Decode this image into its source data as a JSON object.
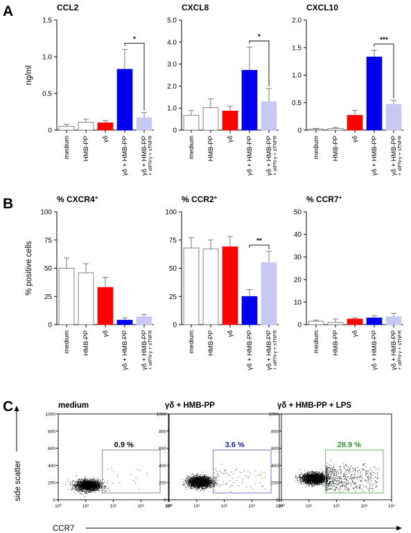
{
  "panel_letters": [
    "A",
    "B",
    "C"
  ],
  "chart_data": [
    {
      "type": "bar",
      "title": "CCL2",
      "ylabel": "ng/ml",
      "ylim": [
        0,
        1.5
      ],
      "yticks": [
        "0",
        "0.5",
        "1.0",
        "1.5"
      ],
      "categories": [
        "medium",
        "HMB-PP",
        "γδ",
        "γδ + HMB-PP",
        "γδ + HMB-PP"
      ],
      "category_sublabel": "+ αIFN-γ + sTNFR",
      "values": [
        0.05,
        0.11,
        0.1,
        0.83,
        0.17
      ],
      "errors": [
        0.03,
        0.04,
        0.03,
        0.27,
        0.07
      ],
      "colors": [
        "#ffffff",
        "#ffffff",
        "#ff0000",
        "#0000ee",
        "#c8c8f4"
      ],
      "significance": {
        "from": 3,
        "to": 4,
        "label": "*"
      }
    },
    {
      "type": "bar",
      "title": "CXCL8",
      "ylabel": "",
      "ylim": [
        0,
        5.0
      ],
      "yticks": [
        "0",
        "1.0",
        "2.0",
        "3.0",
        "4.0",
        "5.0"
      ],
      "categories": [
        "medium",
        "HMB-PP",
        "γδ",
        "γδ + HMB-PP",
        "γδ + HMB-PP"
      ],
      "category_sublabel": "+ αIFN-γ + sTNFR",
      "values": [
        0.67,
        1.02,
        0.87,
        2.72,
        1.29
      ],
      "errors": [
        0.22,
        0.4,
        0.22,
        1.05,
        0.6
      ],
      "colors": [
        "#ffffff",
        "#ffffff",
        "#ff0000",
        "#0000ee",
        "#c8c8f4"
      ],
      "significance": {
        "from": 3,
        "to": 4,
        "label": "*"
      }
    },
    {
      "type": "bar",
      "title": "CXCL10",
      "ylabel": "",
      "ylim": [
        0,
        2.0
      ],
      "yticks": [
        "0",
        "0.5",
        "1.0",
        "1.5",
        "2.0"
      ],
      "categories": [
        "medium",
        "HMB-PP",
        "γδ",
        "γδ + HMB-PP",
        "γδ + HMB-PP"
      ],
      "category_sublabel": "+ αIFN-γ + sTNFR",
      "values": [
        0.02,
        0.03,
        0.27,
        1.33,
        0.47
      ],
      "errors": [
        0.01,
        0.02,
        0.09,
        0.12,
        0.07
      ],
      "colors": [
        "#ffffff",
        "#ffffff",
        "#ff0000",
        "#0000ee",
        "#c8c8f4"
      ],
      "significance": {
        "from": 3,
        "to": 4,
        "label": "***"
      }
    },
    {
      "type": "bar",
      "title": "% CXCR4",
      "title_sup": "+",
      "ylabel": "% positive cells",
      "ylim": [
        0,
        100
      ],
      "yticks": [
        "0",
        "25",
        "50",
        "75",
        "100"
      ],
      "categories": [
        "medium",
        "HMB-PP",
        "γδ",
        "γδ + HMB-PP",
        "γδ + HMB-PP"
      ],
      "category_sublabel": "+ αIFN-γ + sTNFR",
      "values": [
        50,
        46,
        33,
        4,
        7
      ],
      "errors": [
        9,
        8,
        9,
        2,
        2
      ],
      "colors": [
        "#ffffff",
        "#ffffff",
        "#ff0000",
        "#0000ee",
        "#c8c8f4"
      ],
      "significance": null
    },
    {
      "type": "bar",
      "title": "% CCR2",
      "title_sup": "+",
      "ylabel": "",
      "ylim": [
        0,
        100
      ],
      "yticks": [
        "0",
        "25",
        "50",
        "75",
        "100"
      ],
      "categories": [
        "medium",
        "HMB-PP",
        "γδ",
        "γδ + HMB-PP",
        "γδ + HMB-PP"
      ],
      "category_sublabel": "+ αIFN-γ + sTNFR",
      "values": [
        68,
        67,
        69,
        25,
        55
      ],
      "errors": [
        9,
        8,
        9,
        6,
        10
      ],
      "colors": [
        "#ffffff",
        "#ffffff",
        "#ff0000",
        "#0000ee",
        "#c8c8f4"
      ],
      "significance": {
        "from": 3,
        "to": 4,
        "label": "**"
      }
    },
    {
      "type": "bar",
      "title": "% CCR7",
      "title_sup": "+",
      "ylabel": "",
      "ylim": [
        0,
        50
      ],
      "yticks": [
        "0",
        "10",
        "20",
        "30",
        "40",
        "50"
      ],
      "categories": [
        "medium",
        "HMB-PP",
        "γδ",
        "γδ + HMB-PP",
        "γδ + HMB-PP"
      ],
      "category_sublabel": "+ αIFN-γ + sTNFR",
      "values": [
        1.5,
        1.0,
        2.5,
        3.0,
        3.5
      ],
      "errors": [
        0.5,
        1.5,
        0.5,
        1.0,
        1.5
      ],
      "colors": [
        "#ffffff",
        "#ffffff",
        "#ff0000",
        "#0000ee",
        "#c8c8f4"
      ],
      "significance": null
    },
    {
      "type": "scatter",
      "title": "medium",
      "x_scale": "log",
      "xlim": [
        1,
        10000
      ],
      "ylim": [
        0,
        1000
      ],
      "xticks": [
        "10⁰",
        "10¹",
        "10²",
        "10³",
        "10⁴"
      ],
      "yticks": [
        "0",
        "200",
        "400",
        "600",
        "800",
        "1000"
      ],
      "gate": {
        "x": [
          40,
          5000
        ],
        "y": [
          80,
          580
        ],
        "color": "#888888"
      },
      "gate_percent": "0.9 %",
      "gate_percent_color": "#000000",
      "point_color": "#000000",
      "cluster": {
        "x_center": 12,
        "y_center": 170,
        "fraction_in_gate": 0.009
      }
    },
    {
      "type": "scatter",
      "title": "γδ + HMB-PP",
      "x_scale": "log",
      "xlim": [
        1,
        10000
      ],
      "ylim": [
        0,
        1000
      ],
      "xticks": [
        "10⁰",
        "10¹",
        "10²",
        "10³",
        "10⁴"
      ],
      "yticks": [
        "0",
        "200",
        "400",
        "600",
        "800",
        "1000"
      ],
      "gate": {
        "x": [
          40,
          5000
        ],
        "y": [
          80,
          580
        ],
        "color": "#7777cc"
      },
      "gate_percent": "3.6 %",
      "gate_percent_color": "#1a1ab0",
      "point_color": "#000000",
      "cluster": {
        "x_center": 13,
        "y_center": 210,
        "fraction_in_gate": 0.036
      }
    },
    {
      "type": "scatter",
      "title": "γδ + HMB-PP + LPS",
      "x_scale": "log",
      "xlim": [
        1,
        10000
      ],
      "ylim": [
        0,
        1000
      ],
      "xticks": [
        "10⁰",
        "10¹",
        "10²",
        "10³",
        "10⁴"
      ],
      "yticks": [
        "0",
        "200",
        "400",
        "600",
        "800",
        "1000"
      ],
      "gate": {
        "x": [
          40,
          5000
        ],
        "y": [
          80,
          580
        ],
        "color": "#66bb66"
      },
      "gate_percent": "28.9 %",
      "gate_percent_color": "#2a9a2a",
      "point_color": "#000000",
      "cluster": {
        "x_center": 15,
        "y_center": 250,
        "fraction_in_gate": 0.289
      }
    }
  ],
  "flow_axes": {
    "ylabel": "side scatter",
    "xlabel": "CCR7"
  }
}
